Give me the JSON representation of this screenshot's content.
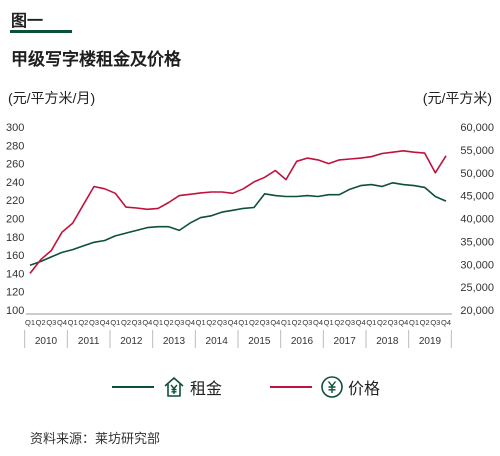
{
  "header": {
    "figure_label": "图一",
    "title": "甲级写字楼租金及价格",
    "left_unit": "(元/平方米/月)",
    "right_unit": "(元/平方米)"
  },
  "legend": {
    "rent": "租金",
    "price": "价格"
  },
  "source": "资料来源：莱坊研究部",
  "colors": {
    "rent": "#0d4f3b",
    "price": "#c0123c",
    "accent": "#0d4f3b"
  },
  "icons": {
    "rent": "house-yen-icon",
    "price": "circle-yen-icon"
  },
  "chart_data": {
    "type": "line",
    "title": "甲级写字楼租金及价格",
    "x": [
      "Q1",
      "Q2",
      "Q3",
      "Q4",
      "Q1",
      "Q2",
      "Q3",
      "Q4",
      "Q1",
      "Q2",
      "Q3",
      "Q4",
      "Q1",
      "Q2",
      "Q3",
      "Q4",
      "Q1",
      "Q2",
      "Q3",
      "Q4",
      "Q1",
      "Q2",
      "Q3",
      "Q4",
      "Q1",
      "Q2",
      "Q3",
      "Q4",
      "Q1",
      "Q2",
      "Q3",
      "Q4",
      "Q1",
      "Q2",
      "Q3",
      "Q4",
      "Q1",
      "Q2",
      "Q3",
      "Q4"
    ],
    "years": [
      "2010",
      "2011",
      "2012",
      "2013",
      "2014",
      "2015",
      "2016",
      "2017",
      "2018",
      "2019"
    ],
    "ylabel_left": "(元/平方米/月)",
    "ylabel_right": "(元/平方米)",
    "ylim_left": [
      100,
      300
    ],
    "ylim_right": [
      20000,
      60000
    ],
    "yticks_left": [
      100,
      120,
      140,
      160,
      180,
      200,
      220,
      240,
      260,
      280,
      300
    ],
    "yticks_right": [
      20000,
      25000,
      30000,
      35000,
      40000,
      45000,
      50000,
      55000,
      60000
    ],
    "ytick_labels_right": [
      "20,000",
      "25,000",
      "30,000",
      "35,000",
      "40,000",
      "45,000",
      "50,000",
      "55,000",
      "60,000"
    ],
    "grid": false,
    "legend_position": "bottom",
    "series": [
      {
        "name": "租金",
        "axis": "left",
        "values": [
          149,
          153,
          158,
          163,
          166,
          170,
          174,
          176,
          181,
          184,
          187,
          190,
          191,
          191,
          187,
          195,
          201,
          203,
          207,
          209,
          211,
          212,
          227,
          225,
          224,
          224,
          225,
          224,
          226,
          226,
          232,
          236,
          237,
          235,
          239,
          237,
          236,
          234,
          224,
          219
        ]
      },
      {
        "name": "价格",
        "axis": "right",
        "values": [
          28000,
          31000,
          33000,
          37000,
          39000,
          43000,
          47000,
          46500,
          45500,
          42500,
          42300,
          42000,
          42200,
          43500,
          45000,
          45300,
          45600,
          45800,
          45800,
          45500,
          46500,
          48000,
          49000,
          50500,
          48500,
          52500,
          53200,
          52800,
          52000,
          52800,
          53000,
          53200,
          53500,
          54200,
          54500,
          54800,
          54500,
          54300,
          50000,
          53700
        ]
      }
    ]
  }
}
